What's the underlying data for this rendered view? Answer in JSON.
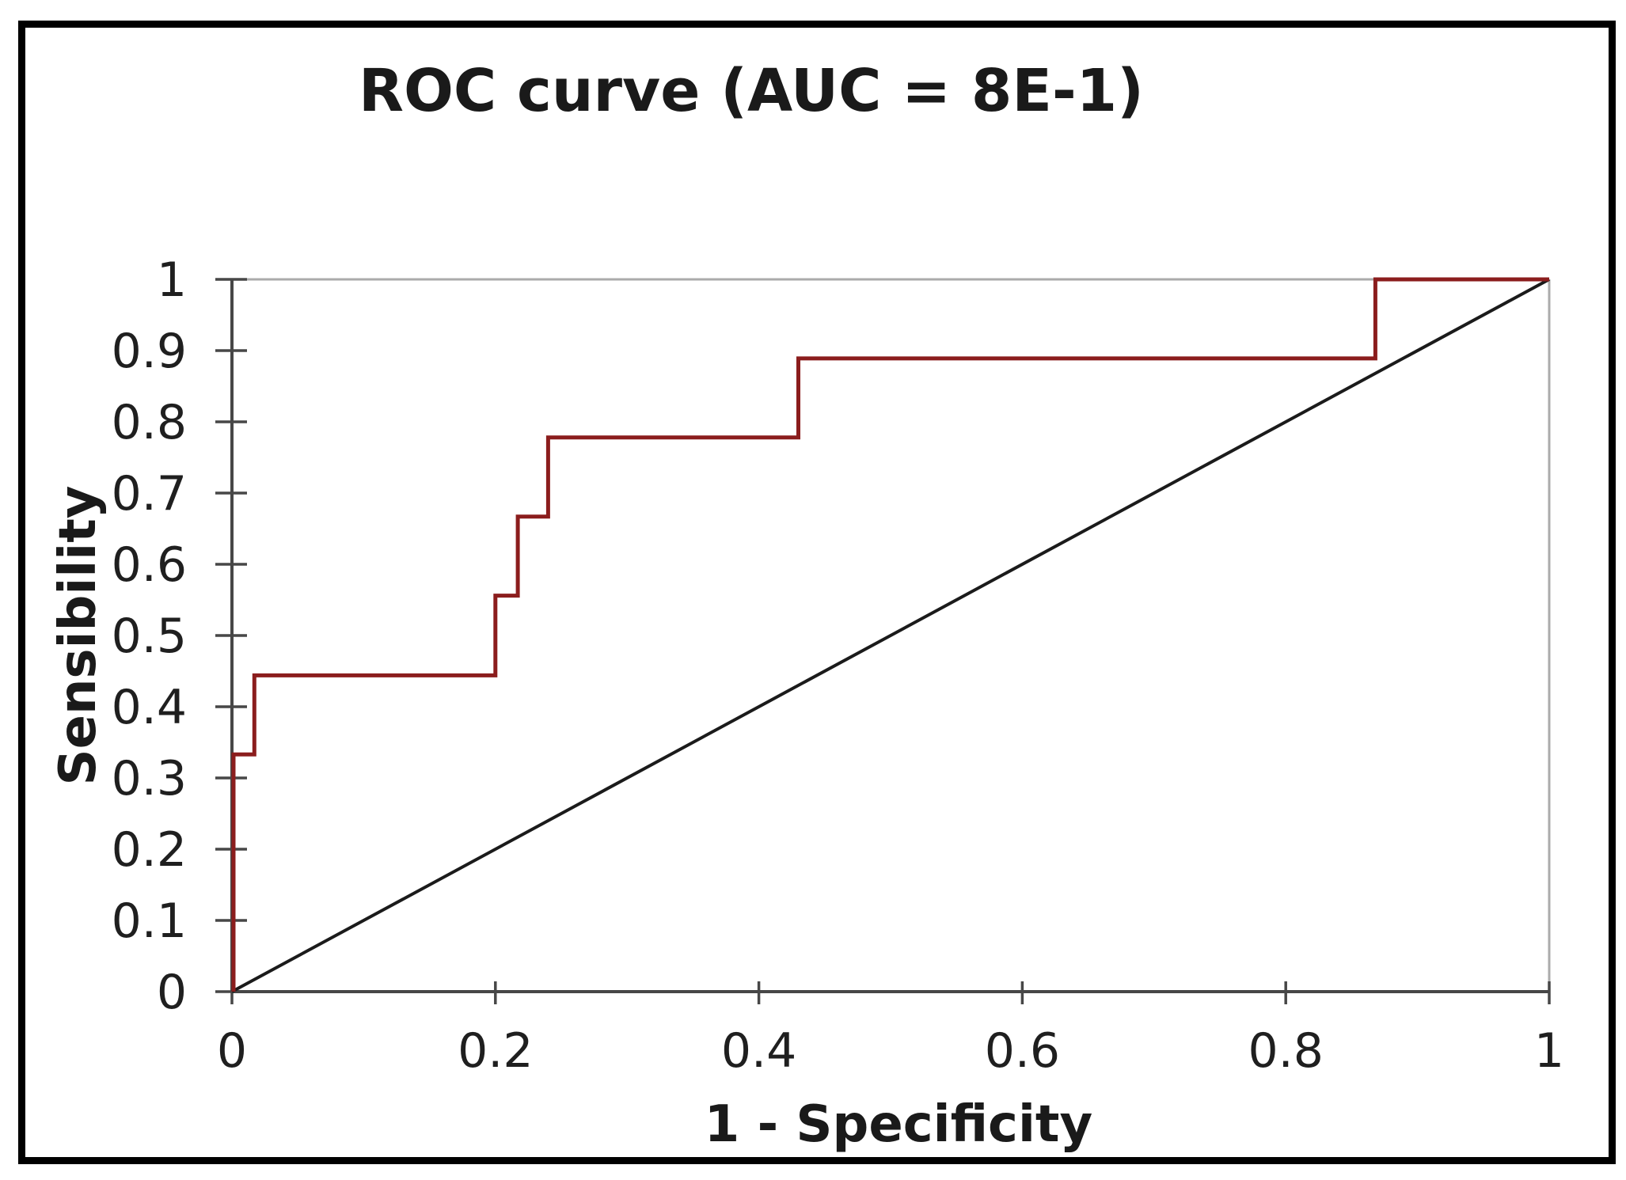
{
  "figure": {
    "background": "#ffffff",
    "border_color": "#000000"
  },
  "chart_data": {
    "type": "line",
    "title": "ROC curve (AUC = 8E-1)",
    "xlabel": "1 - Specificity",
    "ylabel": "Sensibility",
    "auc_label": "8E-1",
    "xlim": [
      0,
      1
    ],
    "ylim": [
      0,
      1
    ],
    "x_ticks": {
      "values": [
        0,
        0.2,
        0.4,
        0.6,
        0.8,
        1
      ],
      "labels": [
        "0",
        "0.2",
        "0.4",
        "0.6",
        "0.8",
        "1"
      ]
    },
    "y_ticks": {
      "values": [
        0,
        0.1,
        0.2,
        0.3,
        0.4,
        0.5,
        0.6,
        0.7,
        0.8,
        0.9,
        1
      ],
      "labels": [
        "0",
        "0.1",
        "0.2",
        "0.3",
        "0.4",
        "0.5",
        "0.6",
        "0.7",
        "0.8",
        "0.9",
        "1"
      ]
    },
    "grid": "no interior gridlines; plot area bordered on top and right only",
    "legend_position": "none",
    "axis_color": "#474747",
    "plot_border_color": "#ABABAB",
    "series": [
      {
        "name": "ROC step curve",
        "style": "step",
        "color": "#8B1D1D",
        "points": [
          [
            0,
            0
          ],
          [
            0,
            0.333
          ],
          [
            0.017,
            0.333
          ],
          [
            0.017,
            0.444
          ],
          [
            0.2,
            0.444
          ],
          [
            0.2,
            0.556
          ],
          [
            0.217,
            0.556
          ],
          [
            0.217,
            0.667
          ],
          [
            0.24,
            0.667
          ],
          [
            0.24,
            0.778
          ],
          [
            0.43,
            0.778
          ],
          [
            0.43,
            0.889
          ],
          [
            0.868,
            0.889
          ],
          [
            0.868,
            1
          ],
          [
            1,
            1
          ]
        ]
      },
      {
        "name": "Chance diagonal",
        "style": "straight",
        "color": "#1b1b1b",
        "points": [
          [
            0,
            0
          ],
          [
            1,
            1
          ]
        ]
      }
    ]
  }
}
